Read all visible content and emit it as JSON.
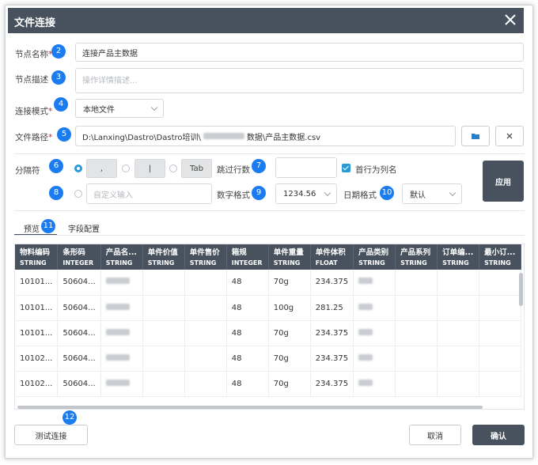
{
  "title": "文件连接",
  "badges": [
    "2",
    "3",
    "4",
    "5",
    "6",
    "7",
    "8",
    "9",
    "10",
    "11",
    "12"
  ],
  "form": {
    "node_name_label": "节点名称",
    "node_name_value": "连接产品主数据",
    "node_desc_label": "节点描述",
    "node_desc_placeholder": "操作详情描述...",
    "conn_mode_label": "连接模式",
    "conn_mode_value": "本地文件",
    "file_path_label": "文件路径",
    "file_path_value": "D:\\Lanxing\\Dastro\\Dastro培训\\",
    "file_path_suffix": "数据\\产品主数据.csv",
    "separator_label": "分隔符",
    "sep_comma": ",",
    "sep_pipe": "|",
    "sep_tab": "Tab",
    "skip_rows_label": "跳过行数",
    "first_row_header_label": "首行为列名",
    "custom_input_placeholder": "自定义输入",
    "number_format_label": "数字格式",
    "number_format_value": "1234.56",
    "date_format_label": "日期格式",
    "date_format_value": "默认",
    "apply_label": "应用"
  },
  "tabs": [
    "预览",
    "字段配置"
  ],
  "table": {
    "columns": [
      {
        "name": "物料编码",
        "type": "STRING"
      },
      {
        "name": "条形码",
        "type": "INTEGER"
      },
      {
        "name": "产品名...",
        "type": "STRING"
      },
      {
        "name": "单件价值",
        "type": "STRING"
      },
      {
        "name": "单件售价",
        "type": "STRING"
      },
      {
        "name": "箱规",
        "type": "INTEGER"
      },
      {
        "name": "单件重量",
        "type": "STRING"
      },
      {
        "name": "单件体积",
        "type": "FLOAT"
      },
      {
        "name": "产品类别",
        "type": "STRING"
      },
      {
        "name": "产品系列",
        "type": "STRING"
      },
      {
        "name": "订单编...",
        "type": "STRING"
      },
      {
        "name": "最小订...",
        "type": "STRING"
      }
    ],
    "rows": [
      [
        "10101...",
        "50604...",
        "",
        "",
        "",
        "48",
        "70g",
        "234.375",
        "",
        "",
        "",
        ""
      ],
      [
        "10101...",
        "50604...",
        "",
        "",
        "",
        "48",
        "100g",
        "281.25",
        "",
        "",
        "",
        ""
      ],
      [
        "10101...",
        "50604...",
        "",
        "",
        "",
        "48",
        "70g",
        "234.375",
        "",
        "",
        "",
        ""
      ],
      [
        "10102...",
        "50604...",
        "",
        "",
        "",
        "48",
        "70g",
        "234.375",
        "",
        "",
        "",
        ""
      ],
      [
        "10102...",
        "50604...",
        "",
        "",
        "",
        "48",
        "70g",
        "234.375",
        "",
        "",
        "",
        ""
      ]
    ]
  },
  "footer": {
    "test_label": "测试连接",
    "cancel_label": "取消",
    "confirm_label": "确认"
  },
  "colors": {
    "header": "#47525e",
    "badge": "#1a7cf0",
    "accent": "#2a9ad6",
    "required": "#e02020"
  }
}
